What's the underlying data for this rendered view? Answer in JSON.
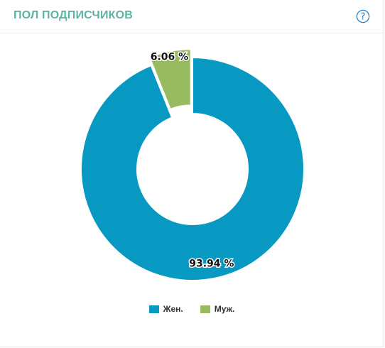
{
  "header": {
    "title": "ПОЛ ПОДПИСЧИКОВ",
    "help_icon": "question-circle-icon",
    "help_color": "#2f7bbf"
  },
  "chart_data": {
    "type": "pie",
    "title": "ПОЛ ПОДПИСЧИКОВ",
    "donut": true,
    "legend_position": "bottom",
    "slices": [
      {
        "label": "Жен.",
        "value": 93.94,
        "value_label": "93.94 %",
        "color": "#0899c3"
      },
      {
        "label": "Муж.",
        "value": 6.06,
        "value_label": "6.06 %",
        "color": "#98bb62",
        "exploded": true
      }
    ]
  },
  "legend": {
    "items": [
      {
        "label": "Жен.",
        "color": "#0899c3"
      },
      {
        "label": "Муж.",
        "color": "#98bb62"
      }
    ]
  }
}
